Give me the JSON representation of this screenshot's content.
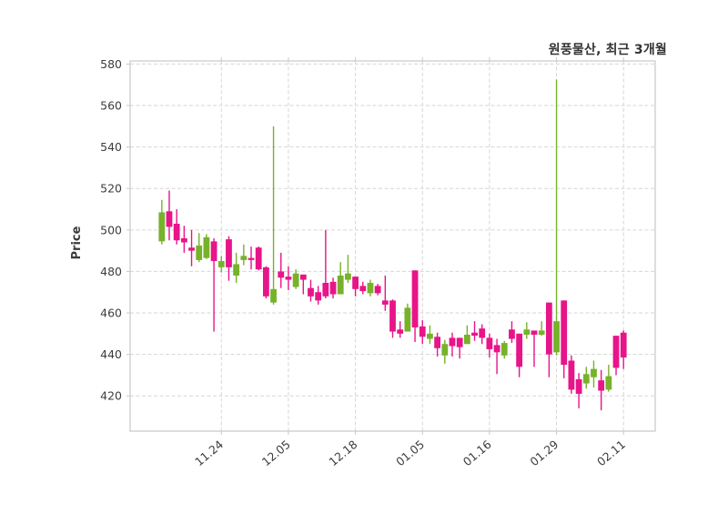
{
  "title": "원풍물산, 최근 3개월",
  "chart_data": {
    "type": "candlestick",
    "title": "원풍물산, 최근 3개월",
    "xlabel": "",
    "ylabel": "Price",
    "ylim": [
      403,
      581.5
    ],
    "grid": "dashed",
    "y_ticks": [
      580,
      560,
      540,
      520,
      500,
      480,
      460,
      440,
      420
    ],
    "x_ticks": [
      {
        "label": "11.24",
        "index": 8
      },
      {
        "label": "12.05",
        "index": 17
      },
      {
        "label": "12.18",
        "index": 26
      },
      {
        "label": "01.05",
        "index": 35
      },
      {
        "label": "01.16",
        "index": 44
      },
      {
        "label": "01.29",
        "index": 53
      },
      {
        "label": "02.11",
        "index": 62
      }
    ],
    "colors": {
      "up": "#76b22a",
      "down": "#e81489",
      "grid": "#d6d6d6",
      "spine": "#c9c9c9",
      "tick_text": "#3c3c3c"
    },
    "ohlc_format": [
      "open",
      "high",
      "low",
      "close"
    ],
    "candles": [
      [
        494.5,
        514.5,
        493,
        508.5
      ],
      [
        509,
        519,
        495,
        501.5
      ],
      [
        503,
        510,
        493,
        495
      ],
      [
        496,
        502,
        489,
        494
      ],
      [
        491.5,
        500,
        482.5,
        490
      ],
      [
        485.5,
        498.5,
        484.5,
        492.5
      ],
      [
        486.5,
        498,
        486,
        496.5
      ],
      [
        494.5,
        496,
        451,
        485
      ],
      [
        482,
        487.5,
        479.5,
        485
      ],
      [
        495.5,
        497,
        475.5,
        482
      ],
      [
        478,
        489,
        474.5,
        483.5
      ],
      [
        485.5,
        493,
        483,
        487.5
      ],
      [
        486.5,
        492,
        481,
        485.5
      ],
      [
        491.5,
        492,
        480.5,
        481
      ],
      [
        482,
        482.5,
        467,
        468
      ],
      [
        465,
        550,
        464,
        471.5
      ],
      [
        480,
        489,
        472,
        477
      ],
      [
        477.5,
        482.5,
        471,
        476
      ],
      [
        472.5,
        481,
        471.5,
        479
      ],
      [
        478.5,
        478.5,
        469,
        476
      ],
      [
        472,
        476,
        465.5,
        468
      ],
      [
        470,
        473,
        464,
        466
      ],
      [
        474.5,
        500,
        467,
        468
      ],
      [
        475,
        477,
        467,
        469
      ],
      [
        469,
        484.5,
        469,
        478
      ],
      [
        476,
        488,
        474.5,
        479
      ],
      [
        477.5,
        477.5,
        468,
        471.5
      ],
      [
        473,
        475,
        469,
        470.5
      ],
      [
        469.5,
        476,
        468,
        474.5
      ],
      [
        473,
        474,
        468.5,
        469.5
      ],
      [
        466,
        478,
        461,
        464
      ],
      [
        466,
        466.5,
        448,
        451
      ],
      [
        452,
        456,
        448,
        450
      ],
      [
        451,
        464.5,
        451,
        462.5
      ],
      [
        480.5,
        480.5,
        446,
        453
      ],
      [
        453.5,
        456.5,
        445,
        448.5
      ],
      [
        447.5,
        454,
        445,
        450
      ],
      [
        448.5,
        450.5,
        439,
        443
      ],
      [
        439.5,
        447,
        435.5,
        445
      ],
      [
        448,
        450.5,
        439,
        444
      ],
      [
        448,
        448,
        438,
        443.5
      ],
      [
        445,
        454,
        445,
        449.5
      ],
      [
        450.5,
        456,
        446.5,
        449
      ],
      [
        452.5,
        454.5,
        445,
        448
      ],
      [
        448,
        450,
        438.5,
        442.5
      ],
      [
        444.5,
        447.5,
        430.5,
        441
      ],
      [
        439.5,
        446.5,
        438,
        445.5
      ],
      [
        452,
        456,
        445.5,
        447.5
      ],
      [
        450,
        450,
        429,
        434
      ],
      [
        449.5,
        455.5,
        447.5,
        452
      ],
      [
        451.5,
        451.5,
        434,
        449.5
      ],
      [
        449.5,
        456,
        449,
        451.5
      ],
      [
        465,
        465,
        429,
        440
      ],
      [
        441,
        572.5,
        439.5,
        456
      ],
      [
        466,
        466,
        428.5,
        435
      ],
      [
        437,
        439.5,
        421,
        423
      ],
      [
        428,
        431,
        414,
        421
      ],
      [
        426,
        434,
        423.5,
        430.5
      ],
      [
        429,
        437,
        424,
        433
      ],
      [
        427.5,
        432.5,
        413,
        422.5
      ],
      [
        423,
        435,
        422,
        429.5
      ],
      [
        449,
        449,
        430,
        433.5
      ],
      [
        450.5,
        451.5,
        433,
        438.5
      ]
    ]
  }
}
